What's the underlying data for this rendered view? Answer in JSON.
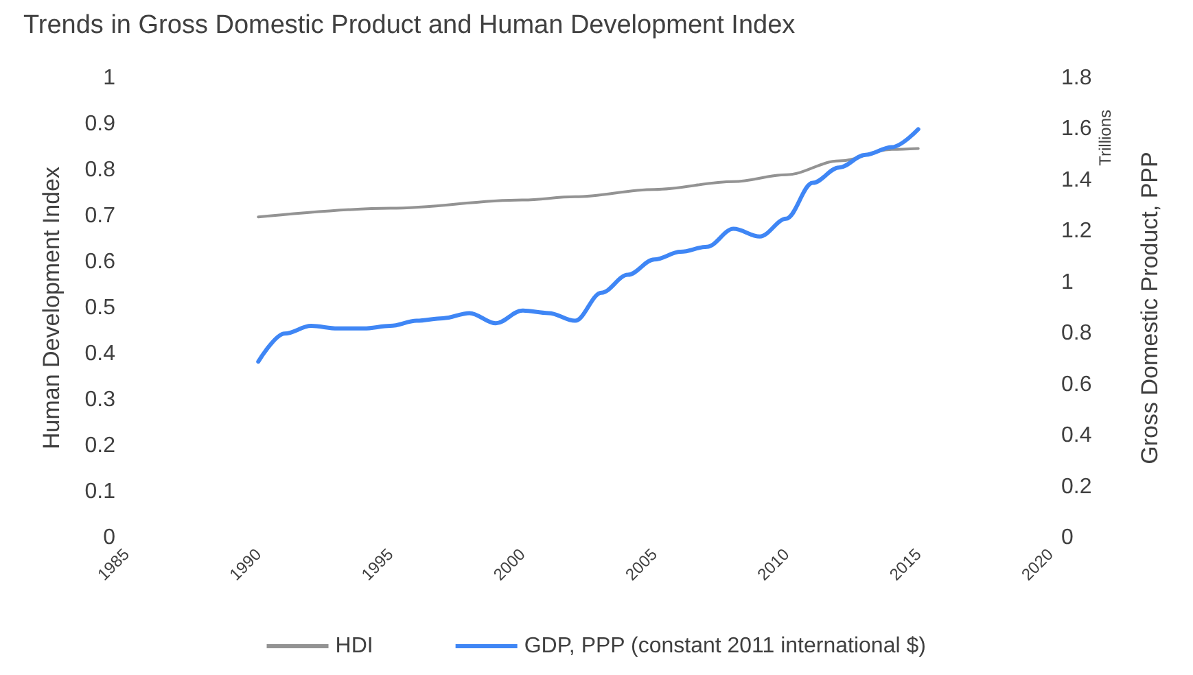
{
  "chart_data": {
    "type": "line",
    "title": "Trends in Gross Domestic Product and Human Development Index",
    "ylabel": "Human Development Index",
    "y2label": "Gross Domestic Product, PPP",
    "annotations": [
      "Trillions"
    ],
    "xlim": [
      1985,
      2020
    ],
    "xticks": [
      1985,
      1990,
      1995,
      2000,
      2005,
      2010,
      2015,
      2020
    ],
    "ylim": [
      0,
      1
    ],
    "yticks": [
      0,
      0.1,
      0.2,
      0.3,
      0.4,
      0.5,
      0.6,
      0.7,
      0.8,
      0.9,
      1
    ],
    "y2lim": [
      0,
      1.8
    ],
    "y2ticks": [
      0,
      0.2,
      0.4,
      0.6,
      0.8,
      1,
      1.2,
      1.4,
      1.6,
      1.8
    ],
    "grid": false,
    "legend": "bottom",
    "series": [
      {
        "name": "HDI",
        "color": "#939393",
        "x": [
          1990,
          1995,
          2000,
          2002,
          2005,
          2008,
          2010,
          2012,
          2014,
          2015
        ],
        "values": [
          0.698,
          0.717,
          0.735,
          0.742,
          0.758,
          0.775,
          0.79,
          0.82,
          0.845,
          0.847
        ]
      },
      {
        "name": "GDP, PPP (constant 2011 international $)",
        "color": "#3f86f5",
        "axis": "y2",
        "x": [
          1990,
          1991,
          1992,
          1993,
          1994,
          1995,
          1996,
          1997,
          1998,
          1999,
          2000,
          2001,
          2002,
          2003,
          2004,
          2005,
          2006,
          2007,
          2008,
          2009,
          2010,
          2011,
          2012,
          2013,
          2014,
          2015
        ],
        "values": [
          0.69,
          0.8,
          0.83,
          0.82,
          0.82,
          0.83,
          0.85,
          0.86,
          0.88,
          0.84,
          0.89,
          0.88,
          0.85,
          0.96,
          1.03,
          1.09,
          1.12,
          1.14,
          1.21,
          1.18,
          1.25,
          1.39,
          1.45,
          1.5,
          1.53,
          1.6
        ]
      }
    ]
  }
}
